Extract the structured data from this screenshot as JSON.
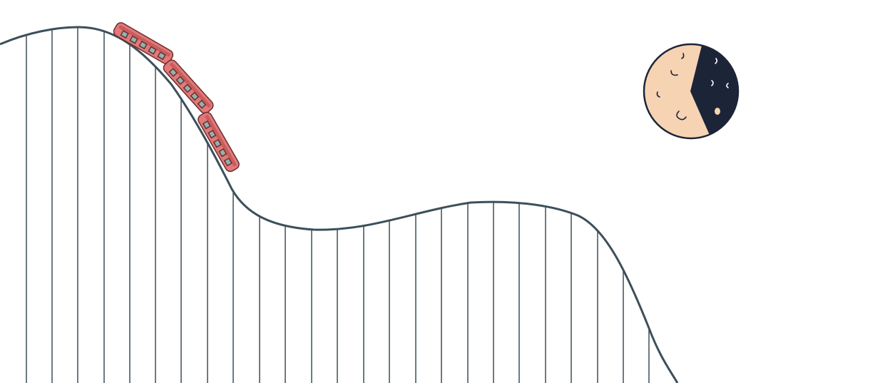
{
  "illustration": {
    "subject": "roller-coaster-with-moon",
    "track": {
      "rail_color": "#3d4f5a",
      "support_color": "#3d4f5a",
      "support_count": 25
    },
    "train": {
      "car_count": 3,
      "body_color": "#e27878",
      "outline_color": "#6b2e2e",
      "window_color": "#8fb3b0"
    },
    "moon": {
      "phase": "crescent-dark",
      "light_color": "#f6d3b3",
      "dark_color": "#1c2438",
      "outline_color": "#1c2438",
      "crater_count": 8
    }
  }
}
